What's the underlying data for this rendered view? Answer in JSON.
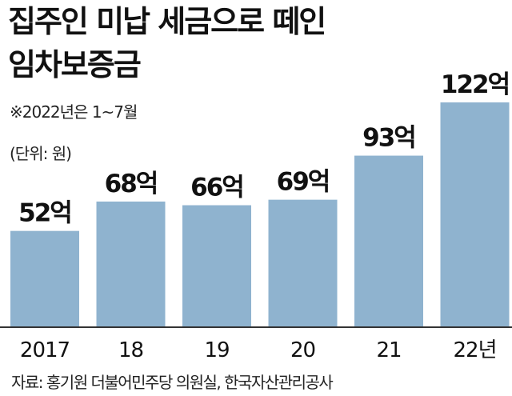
{
  "header": {
    "title_line1": "집주인 미납 세금으로 떼인",
    "title_line2": "임차보증금",
    "note": "※2022년은 1~7월",
    "unit": "(단위: 원)"
  },
  "footer": {
    "source": "자료: 홍기원 더불어민주당 의원실, 한국자산관리공사"
  },
  "colors": {
    "bar": "#8fb3cf",
    "baseline": "#333333"
  },
  "chart_data": {
    "type": "bar",
    "categories": [
      "2017",
      "18",
      "19",
      "20",
      "21",
      "22년"
    ],
    "values": [
      52,
      68,
      66,
      69,
      93,
      122
    ],
    "data_labels": [
      "52억",
      "68억",
      "66억",
      "69억",
      "93억",
      "122억"
    ],
    "title": "집주인 미납 세금으로 떼인 임차보증금",
    "ylabel": "",
    "xlabel": "",
    "ylim": [
      0,
      122
    ],
    "grid": false,
    "legend": "none"
  }
}
